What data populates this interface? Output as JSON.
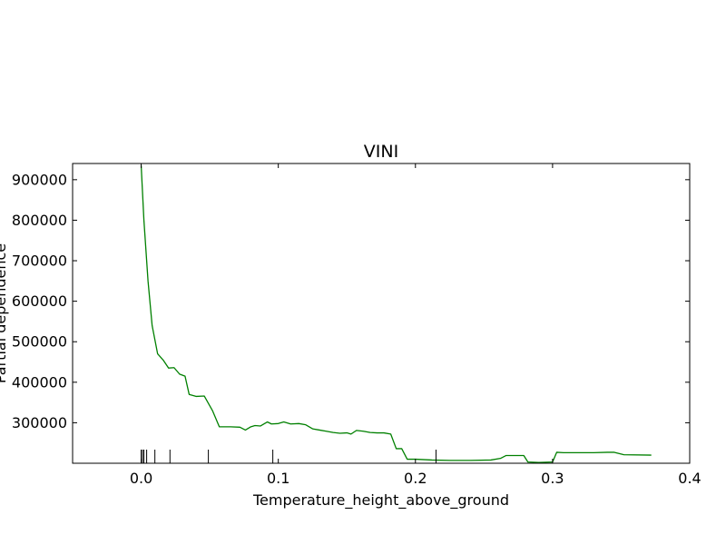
{
  "chart_data": {
    "type": "line",
    "title": "VINI",
    "xlabel": "Temperature_height_above_ground",
    "ylabel": "Partial dependence",
    "xlim": [
      -0.05,
      0.4
    ],
    "ylim": [
      200000,
      940000
    ],
    "x_ticks": [
      0.0,
      0.1,
      0.2,
      0.3,
      0.4
    ],
    "x_tick_labels": [
      "0.0",
      "0.1",
      "0.2",
      "0.3",
      "0.4"
    ],
    "y_ticks": [
      300000,
      400000,
      500000,
      600000,
      700000,
      800000,
      900000
    ],
    "y_tick_labels": [
      "300000",
      "400000",
      "500000",
      "600000",
      "700000",
      "800000",
      "900000"
    ],
    "grid": false,
    "series": [
      {
        "color": "#008000",
        "x": [
          0.0,
          0.002,
          0.005,
          0.008,
          0.012,
          0.016,
          0.02,
          0.024,
          0.028,
          0.032,
          0.035,
          0.04,
          0.046,
          0.052,
          0.057,
          0.065,
          0.072,
          0.076,
          0.08,
          0.083,
          0.087,
          0.092,
          0.095,
          0.1,
          0.104,
          0.109,
          0.115,
          0.12,
          0.125,
          0.13,
          0.135,
          0.14,
          0.145,
          0.15,
          0.153,
          0.157,
          0.162,
          0.167,
          0.172,
          0.177,
          0.182,
          0.186,
          0.19,
          0.194,
          0.2,
          0.212,
          0.225,
          0.24,
          0.255,
          0.262,
          0.266,
          0.27,
          0.273,
          0.276,
          0.279,
          0.282,
          0.29,
          0.3,
          0.303,
          0.308,
          0.33,
          0.34,
          0.345,
          0.352,
          0.372
        ],
        "y": [
          935000,
          800000,
          650000,
          540000,
          470000,
          455000,
          435000,
          436000,
          420000,
          415000,
          370000,
          365000,
          366000,
          330000,
          290000,
          290000,
          289000,
          282000,
          290000,
          293000,
          292000,
          302000,
          297000,
          298000,
          302000,
          297000,
          298000,
          295000,
          285000,
          282000,
          279000,
          276000,
          274000,
          275000,
          272000,
          281000,
          279000,
          276000,
          275000,
          275000,
          272000,
          236000,
          236000,
          210000,
          210000,
          208000,
          207000,
          207000,
          208000,
          212000,
          219000,
          219000,
          219000,
          219000,
          219000,
          203000,
          202000,
          203000,
          227000,
          226000,
          226000,
          227000,
          227000,
          221000,
          220000
        ]
      }
    ],
    "rug_x": [
      0.0,
      0.001,
      0.002,
      0.004,
      0.01,
      0.021,
      0.049,
      0.096,
      0.215
    ]
  }
}
